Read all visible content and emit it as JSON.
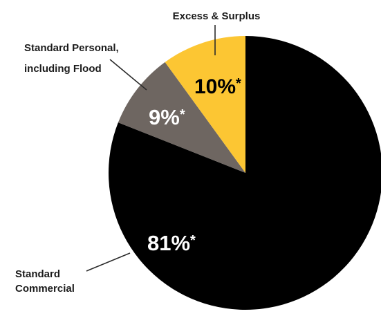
{
  "chart_data": {
    "type": "pie",
    "start": "12 o'clock, clockwise",
    "slices": [
      {
        "label": "Standard Commercial",
        "label_lines": [
          "Standard",
          "Commercial"
        ],
        "value": 81,
        "value_label": "81%",
        "asterisk": "*",
        "color": "#000000",
        "text_color": "#ffffff"
      },
      {
        "label": "Standard Personal, including Flood",
        "label_lines": [
          "Standard Personal,",
          "including Flood"
        ],
        "value": 9,
        "value_label": "9%",
        "asterisk": "*",
        "color": "#6e6661",
        "text_color": "#ffffff"
      },
      {
        "label": "Excess & Surplus",
        "label_lines": [
          "Excess & Surplus"
        ],
        "value": 10,
        "value_label": "10%",
        "asterisk": "*",
        "color": "#fcc633",
        "text_color": "#000000"
      }
    ],
    "legend": "none",
    "leader_line_color": "#2a2a2a"
  }
}
